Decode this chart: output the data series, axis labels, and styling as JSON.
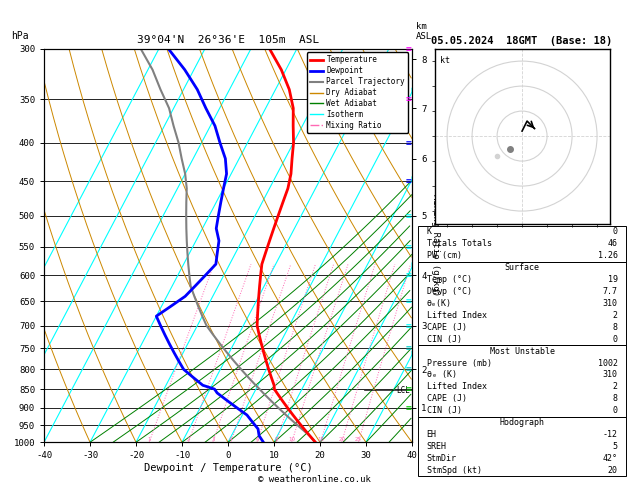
{
  "title_left": "39°04'N  26°36'E  105m  ASL",
  "title_right": "05.05.2024  18GMT  (Base: 18)",
  "xlabel": "Dewpoint / Temperature (°C)",
  "pressure_ticks": [
    300,
    350,
    400,
    450,
    500,
    550,
    600,
    650,
    700,
    750,
    800,
    850,
    900,
    950,
    1000
  ],
  "km_ticks": [
    1,
    2,
    3,
    4,
    5,
    6,
    7,
    8
  ],
  "km_pressures": [
    900,
    800,
    700,
    600,
    500,
    420,
    360,
    310
  ],
  "lcl_pressure": 853,
  "mixing_ratios": [
    1,
    2,
    3,
    4,
    6,
    8,
    10,
    15,
    20,
    25
  ],
  "temp_profile_p": [
    1000,
    980,
    960,
    940,
    920,
    900,
    880,
    860,
    850,
    840,
    820,
    800,
    780,
    760,
    740,
    720,
    700,
    680,
    660,
    640,
    620,
    600,
    580,
    560,
    540,
    520,
    500,
    480,
    460,
    440,
    420,
    400,
    380,
    360,
    340,
    320,
    300
  ],
  "temp_profile_t": [
    19,
    17,
    15,
    13,
    11,
    9,
    7,
    5,
    4,
    3.5,
    2,
    0.5,
    -1,
    -2.5,
    -4,
    -5.5,
    -7,
    -8,
    -9,
    -10,
    -11,
    -12,
    -13,
    -13.5,
    -14,
    -14.5,
    -15,
    -15.5,
    -16,
    -17,
    -18.5,
    -20,
    -22,
    -24,
    -27,
    -31,
    -36
  ],
  "dewp_profile_p": [
    1000,
    980,
    960,
    940,
    920,
    900,
    880,
    860,
    850,
    840,
    820,
    800,
    780,
    760,
    740,
    720,
    700,
    680,
    660,
    640,
    620,
    600,
    580,
    560,
    540,
    520,
    500,
    480,
    460,
    440,
    420,
    400,
    380,
    360,
    340,
    320,
    300
  ],
  "dewp_profile_t": [
    7.7,
    6,
    5,
    3,
    1,
    -2,
    -5,
    -8,
    -9,
    -12,
    -15,
    -18,
    -20,
    -22,
    -24,
    -26,
    -28,
    -30,
    -28,
    -26,
    -25,
    -24,
    -23,
    -24,
    -25,
    -27,
    -28,
    -29,
    -30,
    -31,
    -33,
    -36,
    -39,
    -43,
    -47,
    -52,
    -58
  ],
  "parcel_profile_p": [
    1000,
    980,
    960,
    940,
    920,
    900,
    880,
    860,
    850,
    840,
    820,
    800,
    780,
    760,
    740,
    720,
    700,
    680,
    660,
    640,
    620,
    600,
    580,
    560,
    540,
    520,
    500,
    480,
    460,
    440,
    420,
    400,
    380,
    360,
    340,
    320,
    300
  ],
  "parcel_profile_t": [
    19,
    17,
    14.5,
    12,
    9.5,
    7,
    4.5,
    2,
    0.8,
    -0.5,
    -3,
    -5.5,
    -8,
    -10.5,
    -13,
    -15.5,
    -18,
    -20,
    -22,
    -24,
    -26,
    -27.5,
    -29,
    -30.5,
    -32,
    -33.5,
    -35,
    -36.5,
    -38,
    -40,
    -42.5,
    -45,
    -48,
    -51,
    -55,
    -59,
    -64
  ],
  "legend_items": [
    {
      "label": "Temperature",
      "color": "red",
      "lw": 2,
      "ls": "-"
    },
    {
      "label": "Dewpoint",
      "color": "blue",
      "lw": 2,
      "ls": "-"
    },
    {
      "label": "Parcel Trajectory",
      "color": "gray",
      "lw": 1.5,
      "ls": "-"
    },
    {
      "label": "Dry Adiabat",
      "color": "#CC8800",
      "lw": 1,
      "ls": "-"
    },
    {
      "label": "Wet Adiabat",
      "color": "green",
      "lw": 1,
      "ls": "-"
    },
    {
      "label": "Isotherm",
      "color": "cyan",
      "lw": 1,
      "ls": "-"
    },
    {
      "label": "Mixing Ratio",
      "color": "#FF69B4",
      "lw": 1,
      "ls": "-."
    }
  ],
  "table_data": {
    "K": "0",
    "Totals Totals": "46",
    "PW (cm)": "1.26",
    "Surface_Temp": "19",
    "Surface_Dewp": "7.7",
    "Surface_theta_e": "310",
    "Surface_LI": "2",
    "Surface_CAPE": "8",
    "Surface_CIN": "0",
    "MU_Pressure": "1002",
    "MU_theta_e": "310",
    "MU_LI": "2",
    "MU_CAPE": "8",
    "MU_CIN": "0",
    "Hodo_EH": "-12",
    "Hodo_SREH": "5",
    "Hodo_StmDir": "42°",
    "Hodo_StmSpd": "20"
  },
  "wind_barb_data": [
    {
      "p": 300,
      "color": "#FF00FF"
    },
    {
      "p": 350,
      "color": "#FF00FF"
    },
    {
      "p": 400,
      "color": "blue"
    },
    {
      "p": 450,
      "color": "blue"
    },
    {
      "p": 500,
      "color": "cyan"
    },
    {
      "p": 550,
      "color": "cyan"
    },
    {
      "p": 600,
      "color": "cyan"
    },
    {
      "p": 650,
      "color": "cyan"
    },
    {
      "p": 700,
      "color": "cyan"
    },
    {
      "p": 750,
      "color": "#00CCCC"
    },
    {
      "p": 800,
      "color": "#00CCCC"
    },
    {
      "p": 850,
      "color": "#00CC00"
    },
    {
      "p": 900,
      "color": "#00CC00"
    }
  ],
  "copyright": "© weatheronline.co.uk"
}
